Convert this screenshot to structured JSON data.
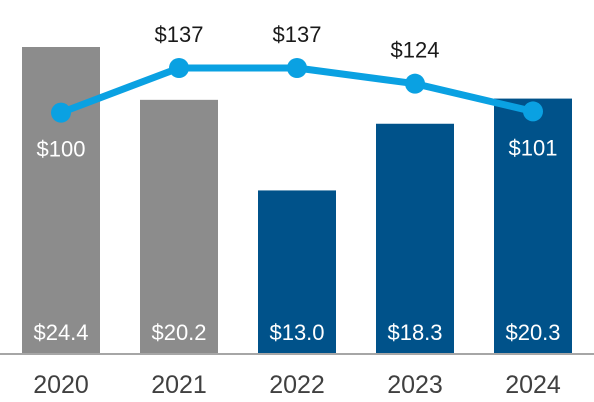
{
  "chart_data": {
    "type": "bar-line",
    "categories": [
      "2020",
      "2021",
      "2022",
      "2023",
      "2024"
    ],
    "bars": {
      "values": [
        24.4,
        20.2,
        13.0,
        18.3,
        20.3
      ],
      "labels": [
        "$24.4",
        "$20.2",
        "$13.0",
        "$18.3",
        "$20.3"
      ],
      "colors": [
        "#8c8c8c",
        "#8c8c8c",
        "#00528a",
        "#00528a",
        "#00528a"
      ],
      "ylim": [
        0,
        24.4
      ]
    },
    "line": {
      "values": [
        100,
        137,
        137,
        124,
        101
      ],
      "labels": [
        "$100",
        "$137",
        "$137",
        "$124",
        "$101"
      ],
      "label_positions": [
        "below",
        "above",
        "above",
        "above",
        "below"
      ],
      "color": "#0aa1e2",
      "ylim": [
        74,
        137
      ]
    },
    "baseline_color": "#a6a6a6",
    "tick_label_color": "#404040",
    "value_label_color": "#1a1a1a",
    "inner_label_color": "#ffffff",
    "grid": false,
    "legend": "none"
  }
}
